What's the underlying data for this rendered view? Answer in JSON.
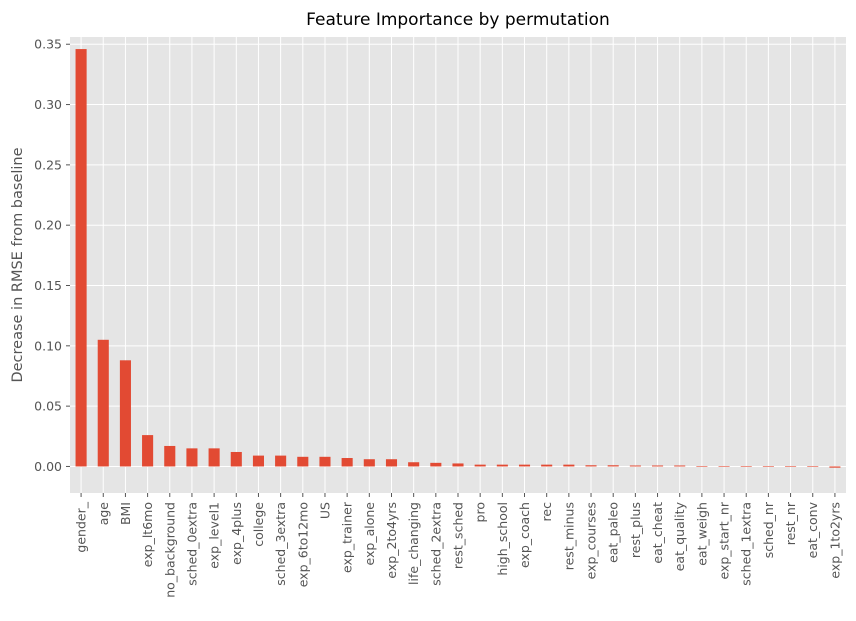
{
  "chart_data": {
    "type": "bar",
    "title": "Feature Importance by permutation",
    "xlabel": "",
    "ylabel": "Decrease in RMSE from baseline",
    "ylim": [
      -0.022,
      0.356
    ],
    "yticks": [
      "0.00",
      "0.05",
      "0.10",
      "0.15",
      "0.20",
      "0.25",
      "0.30",
      "0.35"
    ],
    "grid": true,
    "legend": "none",
    "bar_color": "#E24A33",
    "background_color": "#E5E5E5",
    "categories": [
      "gender_",
      "age",
      "BMI",
      "exp_lt6mo",
      "no_background",
      "sched_0extra",
      "exp_level1",
      "exp_4plus",
      "college",
      "sched_3extra",
      "exp_6to12mo",
      "US",
      "exp_trainer",
      "exp_alone",
      "exp_2to4yrs",
      "life_changing",
      "sched_2extra",
      "rest_sched",
      "pro",
      "high_school",
      "exp_coach",
      "rec",
      "rest_minus",
      "exp_courses",
      "eat_paleo",
      "rest_plus",
      "eat_cheat",
      "eat_quality",
      "eat_weigh",
      "exp_start_nr",
      "sched_1extra",
      "sched_nr",
      "rest_nr",
      "eat_conv",
      "exp_1to2yrs"
    ],
    "values": [
      0.346,
      0.105,
      0.088,
      0.026,
      0.017,
      0.015,
      0.015,
      0.012,
      0.009,
      0.009,
      0.008,
      0.008,
      0.007,
      0.006,
      0.006,
      0.0035,
      0.003,
      0.0025,
      0.0015,
      0.0015,
      0.0015,
      0.0015,
      0.0015,
      0.001,
      0.001,
      0.0008,
      0.0008,
      0.0008,
      0.0002,
      0.0001,
      0.0001,
      0.0001,
      0.0001,
      0.0001,
      -0.001
    ]
  }
}
